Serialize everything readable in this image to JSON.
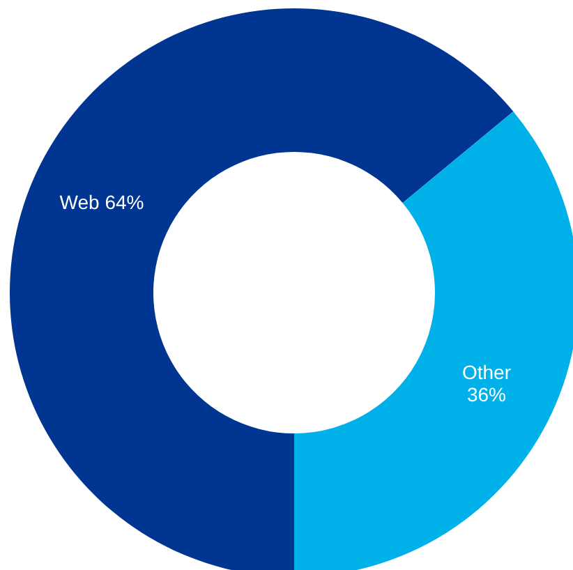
{
  "chart_data": {
    "type": "donut",
    "categories": [
      "Web",
      "Other"
    ],
    "values": [
      64,
      36
    ],
    "value_labels": [
      "64%",
      "36%"
    ],
    "colors": [
      "#003591",
      "#00b0e8"
    ]
  }
}
